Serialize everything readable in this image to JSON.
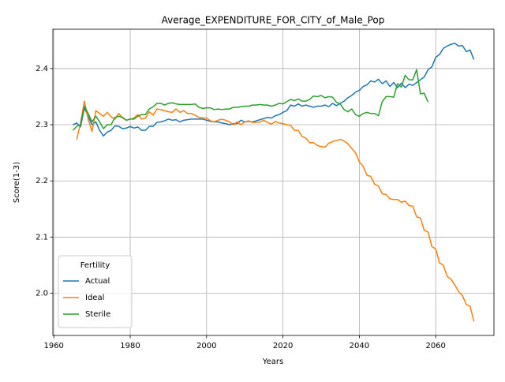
{
  "chart_data": {
    "type": "line",
    "title": "Average_EXPENDITURE_FOR_CITY_of_Male_Pop",
    "x_label": "Years",
    "y_label": "Score(1-3)",
    "x": [
      1965,
      1966,
      1967,
      1968,
      1969,
      1970,
      1971,
      1972,
      1973,
      1974,
      1975,
      1976,
      1977,
      1978,
      1979,
      1980,
      1981,
      1982,
      1983,
      1984,
      1985,
      1986,
      1987,
      1988,
      1989,
      1990,
      1991,
      1992,
      1993,
      1994,
      1995,
      1996,
      1997,
      1998,
      1999,
      2000,
      2001,
      2002,
      2003,
      2004,
      2005,
      2006,
      2007,
      2008,
      2009,
      2010,
      2011,
      2012,
      2013,
      2014,
      2015,
      2016,
      2017,
      2018,
      2019,
      2020,
      2021,
      2022,
      2023,
      2024,
      2025,
      2026,
      2027,
      2028,
      2029,
      2030,
      2031,
      2032,
      2033,
      2034,
      2035,
      2036,
      2037,
      2038,
      2039,
      2040,
      2041,
      2042,
      2043,
      2044,
      2045,
      2046,
      2047,
      2048,
      2049,
      2050,
      2051,
      2052,
      2053,
      2054,
      2055,
      2056,
      2057,
      2058,
      2059,
      2060,
      2061,
      2062,
      2063,
      2064,
      2065,
      2066,
      2067,
      2068,
      2069,
      2070
    ],
    "series": [
      {
        "name": "Actual",
        "color": "#1f77b4",
        "values": [
          2.3,
          2.303,
          2.296,
          2.33,
          2.315,
          2.3,
          2.305,
          2.29,
          2.28,
          2.287,
          2.29,
          2.298,
          2.297,
          2.293,
          2.294,
          2.297,
          2.294,
          2.296,
          2.29,
          2.29,
          2.297,
          2.297,
          2.304,
          2.305,
          2.307,
          2.31,
          2.308,
          2.309,
          2.305,
          2.308,
          2.309,
          2.31,
          2.31,
          2.31,
          2.31,
          2.308,
          2.306,
          2.305,
          2.305,
          2.303,
          2.302,
          2.3,
          2.302,
          2.302,
          2.308,
          2.305,
          2.306,
          2.305,
          2.307,
          2.309,
          2.311,
          2.313,
          2.312,
          2.316,
          2.318,
          2.322,
          2.325,
          2.335,
          2.333,
          2.337,
          2.333,
          2.335,
          2.333,
          2.331,
          2.333,
          2.333,
          2.335,
          2.332,
          2.338,
          2.334,
          2.338,
          2.342,
          2.348,
          2.352,
          2.358,
          2.361,
          2.368,
          2.371,
          2.378,
          2.376,
          2.381,
          2.373,
          2.378,
          2.368,
          2.375,
          2.366,
          2.374,
          2.366,
          2.372,
          2.37,
          2.375,
          2.38,
          2.385,
          2.398,
          2.403,
          2.42,
          2.425,
          2.436,
          2.44,
          2.443,
          2.445,
          2.44,
          2.441,
          2.43,
          2.433,
          2.416
        ]
      },
      {
        "name": "Ideal",
        "color": "#ff7f0e",
        "values": [
          null,
          2.274,
          2.303,
          2.342,
          2.31,
          2.288,
          2.325,
          2.32,
          2.315,
          2.322,
          2.314,
          2.31,
          2.32,
          2.312,
          2.308,
          2.31,
          2.312,
          2.318,
          2.31,
          2.312,
          2.323,
          2.317,
          2.328,
          2.327,
          2.325,
          2.323,
          2.322,
          2.328,
          2.322,
          2.325,
          2.32,
          2.32,
          2.317,
          2.313,
          2.312,
          2.312,
          2.307,
          2.305,
          2.308,
          2.31,
          2.308,
          2.305,
          2.3,
          2.305,
          2.3,
          2.305,
          2.307,
          2.304,
          2.304,
          2.305,
          2.308,
          2.304,
          2.301,
          2.306,
          2.303,
          2.302,
          2.3,
          2.299,
          2.29,
          2.29,
          2.279,
          2.276,
          2.268,
          2.268,
          2.263,
          2.261,
          2.26,
          2.267,
          2.27,
          2.272,
          2.274,
          2.271,
          2.266,
          2.258,
          2.25,
          2.234,
          2.226,
          2.21,
          2.208,
          2.194,
          2.191,
          2.177,
          2.176,
          2.168,
          2.167,
          2.167,
          2.162,
          2.164,
          2.156,
          2.155,
          2.136,
          2.134,
          2.112,
          2.109,
          2.083,
          2.079,
          2.054,
          2.05,
          2.03,
          2.025,
          2.015,
          2.003,
          1.996,
          1.98,
          1.977,
          1.95
        ]
      },
      {
        "name": "Sterile",
        "color": "#2ca02c",
        "values": [
          2.29,
          2.297,
          2.3,
          2.333,
          2.32,
          2.305,
          2.315,
          2.305,
          2.293,
          2.3,
          2.3,
          2.313,
          2.315,
          2.313,
          2.308,
          2.31,
          2.31,
          2.315,
          2.318,
          2.318,
          2.328,
          2.332,
          2.338,
          2.338,
          2.335,
          2.338,
          2.339,
          2.337,
          2.336,
          2.336,
          2.336,
          2.336,
          2.337,
          2.331,
          2.329,
          2.33,
          2.33,
          2.327,
          2.328,
          2.327,
          2.328,
          2.328,
          2.331,
          2.331,
          2.332,
          2.333,
          2.333,
          2.335,
          2.335,
          2.336,
          2.335,
          2.335,
          2.333,
          2.335,
          2.338,
          2.337,
          2.341,
          2.345,
          2.343,
          2.346,
          2.342,
          2.342,
          2.345,
          2.351,
          2.35,
          2.352,
          2.348,
          2.35,
          2.349,
          2.34,
          2.337,
          2.327,
          2.323,
          2.328,
          2.318,
          2.315,
          2.32,
          2.322,
          2.32,
          2.32,
          2.316,
          2.341,
          2.35,
          2.35,
          2.349,
          2.373,
          2.367,
          2.388,
          2.38,
          2.38,
          2.398,
          2.355,
          2.356,
          2.34,
          null,
          null,
          null,
          null,
          null,
          null,
          null,
          null,
          null,
          null,
          null,
          null
        ]
      }
    ],
    "xlim": [
      1959.75,
      2075.25
    ],
    "xticks": [
      1960,
      1980,
      2000,
      2020,
      2040,
      2060
    ],
    "ylim": [
      1.925,
      2.47
    ],
    "yticks": [
      {
        "value": 2,
        "label": "2.0"
      },
      2.1,
      2.2,
      2.3,
      2.4
    ],
    "grid": true,
    "legend_title": "Fertility",
    "legend_position": "lower-left"
  }
}
